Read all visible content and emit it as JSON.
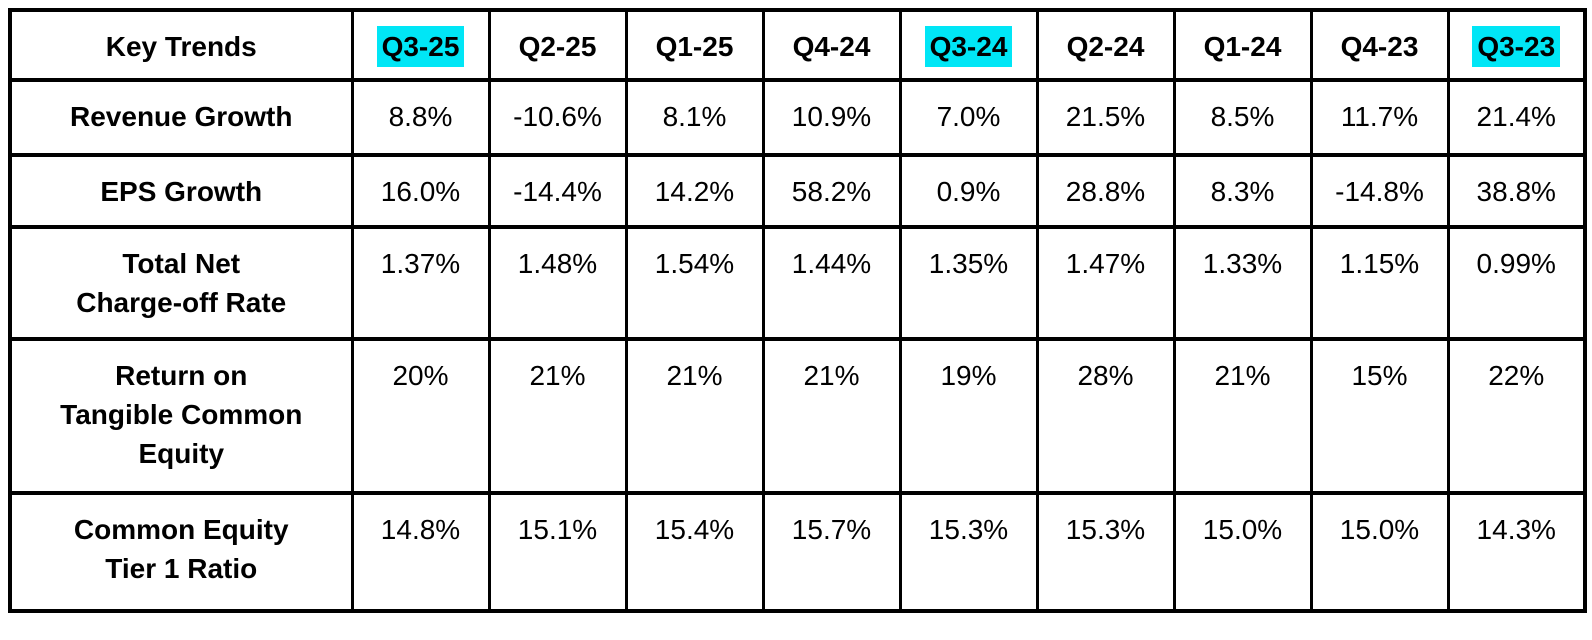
{
  "table": {
    "header": {
      "label": "Key Trends",
      "columns": [
        {
          "label": "Q3-25",
          "highlighted": true
        },
        {
          "label": "Q2-25",
          "highlighted": false
        },
        {
          "label": "Q1-25",
          "highlighted": false
        },
        {
          "label": "Q4-24",
          "highlighted": false
        },
        {
          "label": "Q3-24",
          "highlighted": true
        },
        {
          "label": "Q2-24",
          "highlighted": false
        },
        {
          "label": "Q1-24",
          "highlighted": false
        },
        {
          "label": "Q4-23",
          "highlighted": false
        },
        {
          "label": "Q3-23",
          "highlighted": true
        }
      ]
    },
    "rows": [
      {
        "label": "Revenue Growth",
        "values": [
          "8.8%",
          "-10.6%",
          "8.1%",
          "10.9%",
          "7.0%",
          "21.5%",
          "8.5%",
          "11.7%",
          "21.4%"
        ]
      },
      {
        "label": "EPS Growth",
        "values": [
          "16.0%",
          "-14.4%",
          "14.2%",
          "58.2%",
          "0.9%",
          "28.8%",
          "8.3%",
          "-14.8%",
          "38.8%"
        ]
      },
      {
        "label": "Total Net\nCharge-off Rate",
        "values": [
          "1.37%",
          "1.48%",
          "1.54%",
          "1.44%",
          "1.35%",
          "1.47%",
          "1.33%",
          "1.15%",
          "0.99%"
        ]
      },
      {
        "label": "Return on\nTangible Common\nEquity",
        "values": [
          "20%",
          "21%",
          "21%",
          "21%",
          "19%",
          "28%",
          "21%",
          "15%",
          "22%"
        ]
      },
      {
        "label": "Common Equity\nTier 1 Ratio",
        "values": [
          "14.8%",
          "15.1%",
          "15.4%",
          "15.7%",
          "15.3%",
          "15.3%",
          "15.0%",
          "15.0%",
          "14.3%"
        ]
      }
    ],
    "colors": {
      "highlight": "#00e6f6",
      "border": "#000000",
      "text": "#000000",
      "background": "#ffffff"
    }
  },
  "chart_data": {
    "type": "table",
    "title": "Key Trends",
    "columns": [
      "Q3-25",
      "Q2-25",
      "Q1-25",
      "Q4-24",
      "Q3-24",
      "Q2-24",
      "Q1-24",
      "Q4-23",
      "Q3-23"
    ],
    "highlighted_columns": [
      "Q3-25",
      "Q3-24",
      "Q3-23"
    ],
    "rows": [
      {
        "metric": "Revenue Growth",
        "values_pct": [
          8.8,
          -10.6,
          8.1,
          10.9,
          7.0,
          21.5,
          8.5,
          11.7,
          21.4
        ]
      },
      {
        "metric": "EPS Growth",
        "values_pct": [
          16.0,
          -14.4,
          14.2,
          58.2,
          0.9,
          28.8,
          8.3,
          -14.8,
          38.8
        ]
      },
      {
        "metric": "Total Net Charge-off Rate",
        "values_pct": [
          1.37,
          1.48,
          1.54,
          1.44,
          1.35,
          1.47,
          1.33,
          1.15,
          0.99
        ]
      },
      {
        "metric": "Return on Tangible Common Equity",
        "values_pct": [
          20,
          21,
          21,
          21,
          19,
          28,
          21,
          15,
          22
        ]
      },
      {
        "metric": "Common Equity Tier 1 Ratio",
        "values_pct": [
          14.8,
          15.1,
          15.4,
          15.7,
          15.3,
          15.3,
          15.0,
          15.0,
          14.3
        ]
      }
    ]
  }
}
